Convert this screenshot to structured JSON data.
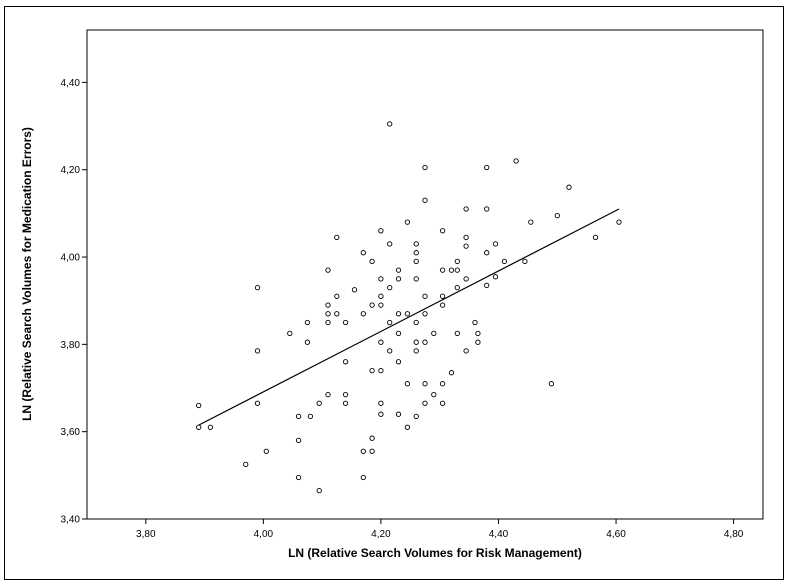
{
  "chart_data": {
    "type": "scatter",
    "xlabel": "LN (Relative Search Volumes for Risk Management)",
    "ylabel": "LN (Relative Search Volumes for Medication Errors)",
    "xlim": [
      3.7,
      4.85
    ],
    "ylim": [
      3.4,
      4.52
    ],
    "x_ticks": [
      "3,80",
      "4,00",
      "4,20",
      "4,40",
      "4,60",
      "4,80"
    ],
    "x_tick_values": [
      3.8,
      4.0,
      4.2,
      4.4,
      4.6,
      4.8
    ],
    "y_ticks": [
      "3,40",
      "3,60",
      "3,80",
      "4,00",
      "4,20",
      "4,40"
    ],
    "y_tick_values": [
      3.4,
      3.6,
      3.8,
      4.0,
      4.2,
      4.4
    ],
    "grid": false,
    "marker": "open-circle",
    "fit_line": {
      "x": [
        3.89,
        4.605
      ],
      "y": [
        3.615,
        4.11
      ]
    },
    "points": [
      [
        3.89,
        3.66
      ],
      [
        3.89,
        3.61
      ],
      [
        3.91,
        3.61
      ],
      [
        3.97,
        3.525
      ],
      [
        3.99,
        3.93
      ],
      [
        3.99,
        3.785
      ],
      [
        3.99,
        3.665
      ],
      [
        4.005,
        3.555
      ],
      [
        4.045,
        3.825
      ],
      [
        4.06,
        3.635
      ],
      [
        4.06,
        3.58
      ],
      [
        4.06,
        3.495
      ],
      [
        4.075,
        3.85
      ],
      [
        4.075,
        3.805
      ],
      [
        4.08,
        3.635
      ],
      [
        4.095,
        3.665
      ],
      [
        4.095,
        3.465
      ],
      [
        4.11,
        3.97
      ],
      [
        4.11,
        3.89
      ],
      [
        4.11,
        3.87
      ],
      [
        4.11,
        3.85
      ],
      [
        4.11,
        3.685
      ],
      [
        4.125,
        4.045
      ],
      [
        4.125,
        3.91
      ],
      [
        4.125,
        3.87
      ],
      [
        4.14,
        3.85
      ],
      [
        4.14,
        3.76
      ],
      [
        4.14,
        3.685
      ],
      [
        4.14,
        3.665
      ],
      [
        4.155,
        3.925
      ],
      [
        4.17,
        4.01
      ],
      [
        4.17,
        3.87
      ],
      [
        4.17,
        3.555
      ],
      [
        4.17,
        3.495
      ],
      [
        4.185,
        3.99
      ],
      [
        4.185,
        3.89
      ],
      [
        4.185,
        3.74
      ],
      [
        4.185,
        3.585
      ],
      [
        4.185,
        3.555
      ],
      [
        4.2,
        4.06
      ],
      [
        4.2,
        3.95
      ],
      [
        4.2,
        3.91
      ],
      [
        4.2,
        3.89
      ],
      [
        4.2,
        3.805
      ],
      [
        4.2,
        3.74
      ],
      [
        4.2,
        3.665
      ],
      [
        4.2,
        3.64
      ],
      [
        4.215,
        4.305
      ],
      [
        4.215,
        4.03
      ],
      [
        4.215,
        3.93
      ],
      [
        4.215,
        3.85
      ],
      [
        4.215,
        3.785
      ],
      [
        4.23,
        3.97
      ],
      [
        4.23,
        3.95
      ],
      [
        4.23,
        3.87
      ],
      [
        4.23,
        3.825
      ],
      [
        4.23,
        3.76
      ],
      [
        4.23,
        3.64
      ],
      [
        4.245,
        4.08
      ],
      [
        4.245,
        3.87
      ],
      [
        4.245,
        3.71
      ],
      [
        4.245,
        3.61
      ],
      [
        4.26,
        4.03
      ],
      [
        4.26,
        4.01
      ],
      [
        4.26,
        3.99
      ],
      [
        4.26,
        3.95
      ],
      [
        4.26,
        3.85
      ],
      [
        4.26,
        3.805
      ],
      [
        4.26,
        3.785
      ],
      [
        4.26,
        3.635
      ],
      [
        4.275,
        4.205
      ],
      [
        4.275,
        4.13
      ],
      [
        4.275,
        3.91
      ],
      [
        4.275,
        3.87
      ],
      [
        4.275,
        3.805
      ],
      [
        4.275,
        3.71
      ],
      [
        4.275,
        3.665
      ],
      [
        4.29,
        3.825
      ],
      [
        4.29,
        3.685
      ],
      [
        4.305,
        4.06
      ],
      [
        4.305,
        3.97
      ],
      [
        4.305,
        3.91
      ],
      [
        4.305,
        3.89
      ],
      [
        4.305,
        3.71
      ],
      [
        4.305,
        3.665
      ],
      [
        4.32,
        3.97
      ],
      [
        4.32,
        3.735
      ],
      [
        4.33,
        3.99
      ],
      [
        4.33,
        3.97
      ],
      [
        4.33,
        3.93
      ],
      [
        4.33,
        3.825
      ],
      [
        4.345,
        4.11
      ],
      [
        4.345,
        4.045
      ],
      [
        4.345,
        4.025
      ],
      [
        4.345,
        3.95
      ],
      [
        4.345,
        3.785
      ],
      [
        4.36,
        3.85
      ],
      [
        4.365,
        3.825
      ],
      [
        4.365,
        3.805
      ],
      [
        4.38,
        4.205
      ],
      [
        4.38,
        4.11
      ],
      [
        4.38,
        4.01
      ],
      [
        4.38,
        3.935
      ],
      [
        4.395,
        4.03
      ],
      [
        4.395,
        3.955
      ],
      [
        4.41,
        3.99
      ],
      [
        4.43,
        4.22
      ],
      [
        4.445,
        3.99
      ],
      [
        4.455,
        4.08
      ],
      [
        4.49,
        3.71
      ],
      [
        4.5,
        4.095
      ],
      [
        4.52,
        4.16
      ],
      [
        4.565,
        4.045
      ],
      [
        4.605,
        4.08
      ]
    ]
  }
}
